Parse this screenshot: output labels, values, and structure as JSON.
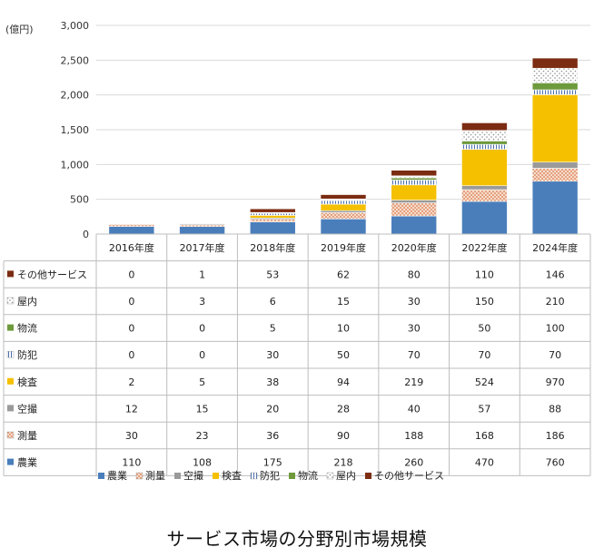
{
  "chart_data": {
    "type": "bar",
    "stacked": true,
    "title": "サービス市場の分野別市場規模",
    "ylabel": "(億円)",
    "ylim": [
      0,
      3000
    ],
    "yticks": [
      "0",
      "500",
      "1,000",
      "1,500",
      "2,000",
      "2,500",
      "3,000"
    ],
    "grid": true,
    "legend_position": "bottom",
    "categories": [
      "2016年度",
      "2017年度",
      "2018年度",
      "2019年度",
      "2020年度",
      "2022年度",
      "2024年度"
    ],
    "series": [
      {
        "name": "農業",
        "color": "#4a7ebb",
        "pattern": "solid",
        "values": [
          110,
          108,
          175,
          218,
          260,
          470,
          760
        ]
      },
      {
        "name": "測量",
        "color": "#e8a07c",
        "pattern": "dots",
        "values": [
          30,
          23,
          36,
          90,
          188,
          168,
          186
        ]
      },
      {
        "name": "空撮",
        "color": "#9a9a9a",
        "pattern": "solid",
        "values": [
          12,
          15,
          20,
          28,
          40,
          57,
          88
        ]
      },
      {
        "name": "検査",
        "color": "#f5c000",
        "pattern": "solid",
        "values": [
          2,
          5,
          38,
          94,
          219,
          524,
          970
        ]
      },
      {
        "name": "防犯",
        "color": "#5b86c5",
        "pattern": "vlines",
        "values": [
          0,
          0,
          30,
          50,
          70,
          70,
          70
        ]
      },
      {
        "name": "物流",
        "color": "#6e9a3c",
        "pattern": "solid",
        "values": [
          0,
          0,
          5,
          10,
          30,
          50,
          100
        ]
      },
      {
        "name": "屋内",
        "color": "#9a9a9a",
        "pattern": "sparse",
        "values": [
          0,
          3,
          6,
          15,
          30,
          150,
          210
        ]
      },
      {
        "name": "その他サービス",
        "color": "#7b2c12",
        "pattern": "solid",
        "values": [
          0,
          1,
          53,
          62,
          80,
          110,
          146
        ]
      }
    ],
    "table_row_order": [
      "その他サービス",
      "屋内",
      "物流",
      "防犯",
      "検査",
      "空撮",
      "測量",
      "農業"
    ]
  }
}
